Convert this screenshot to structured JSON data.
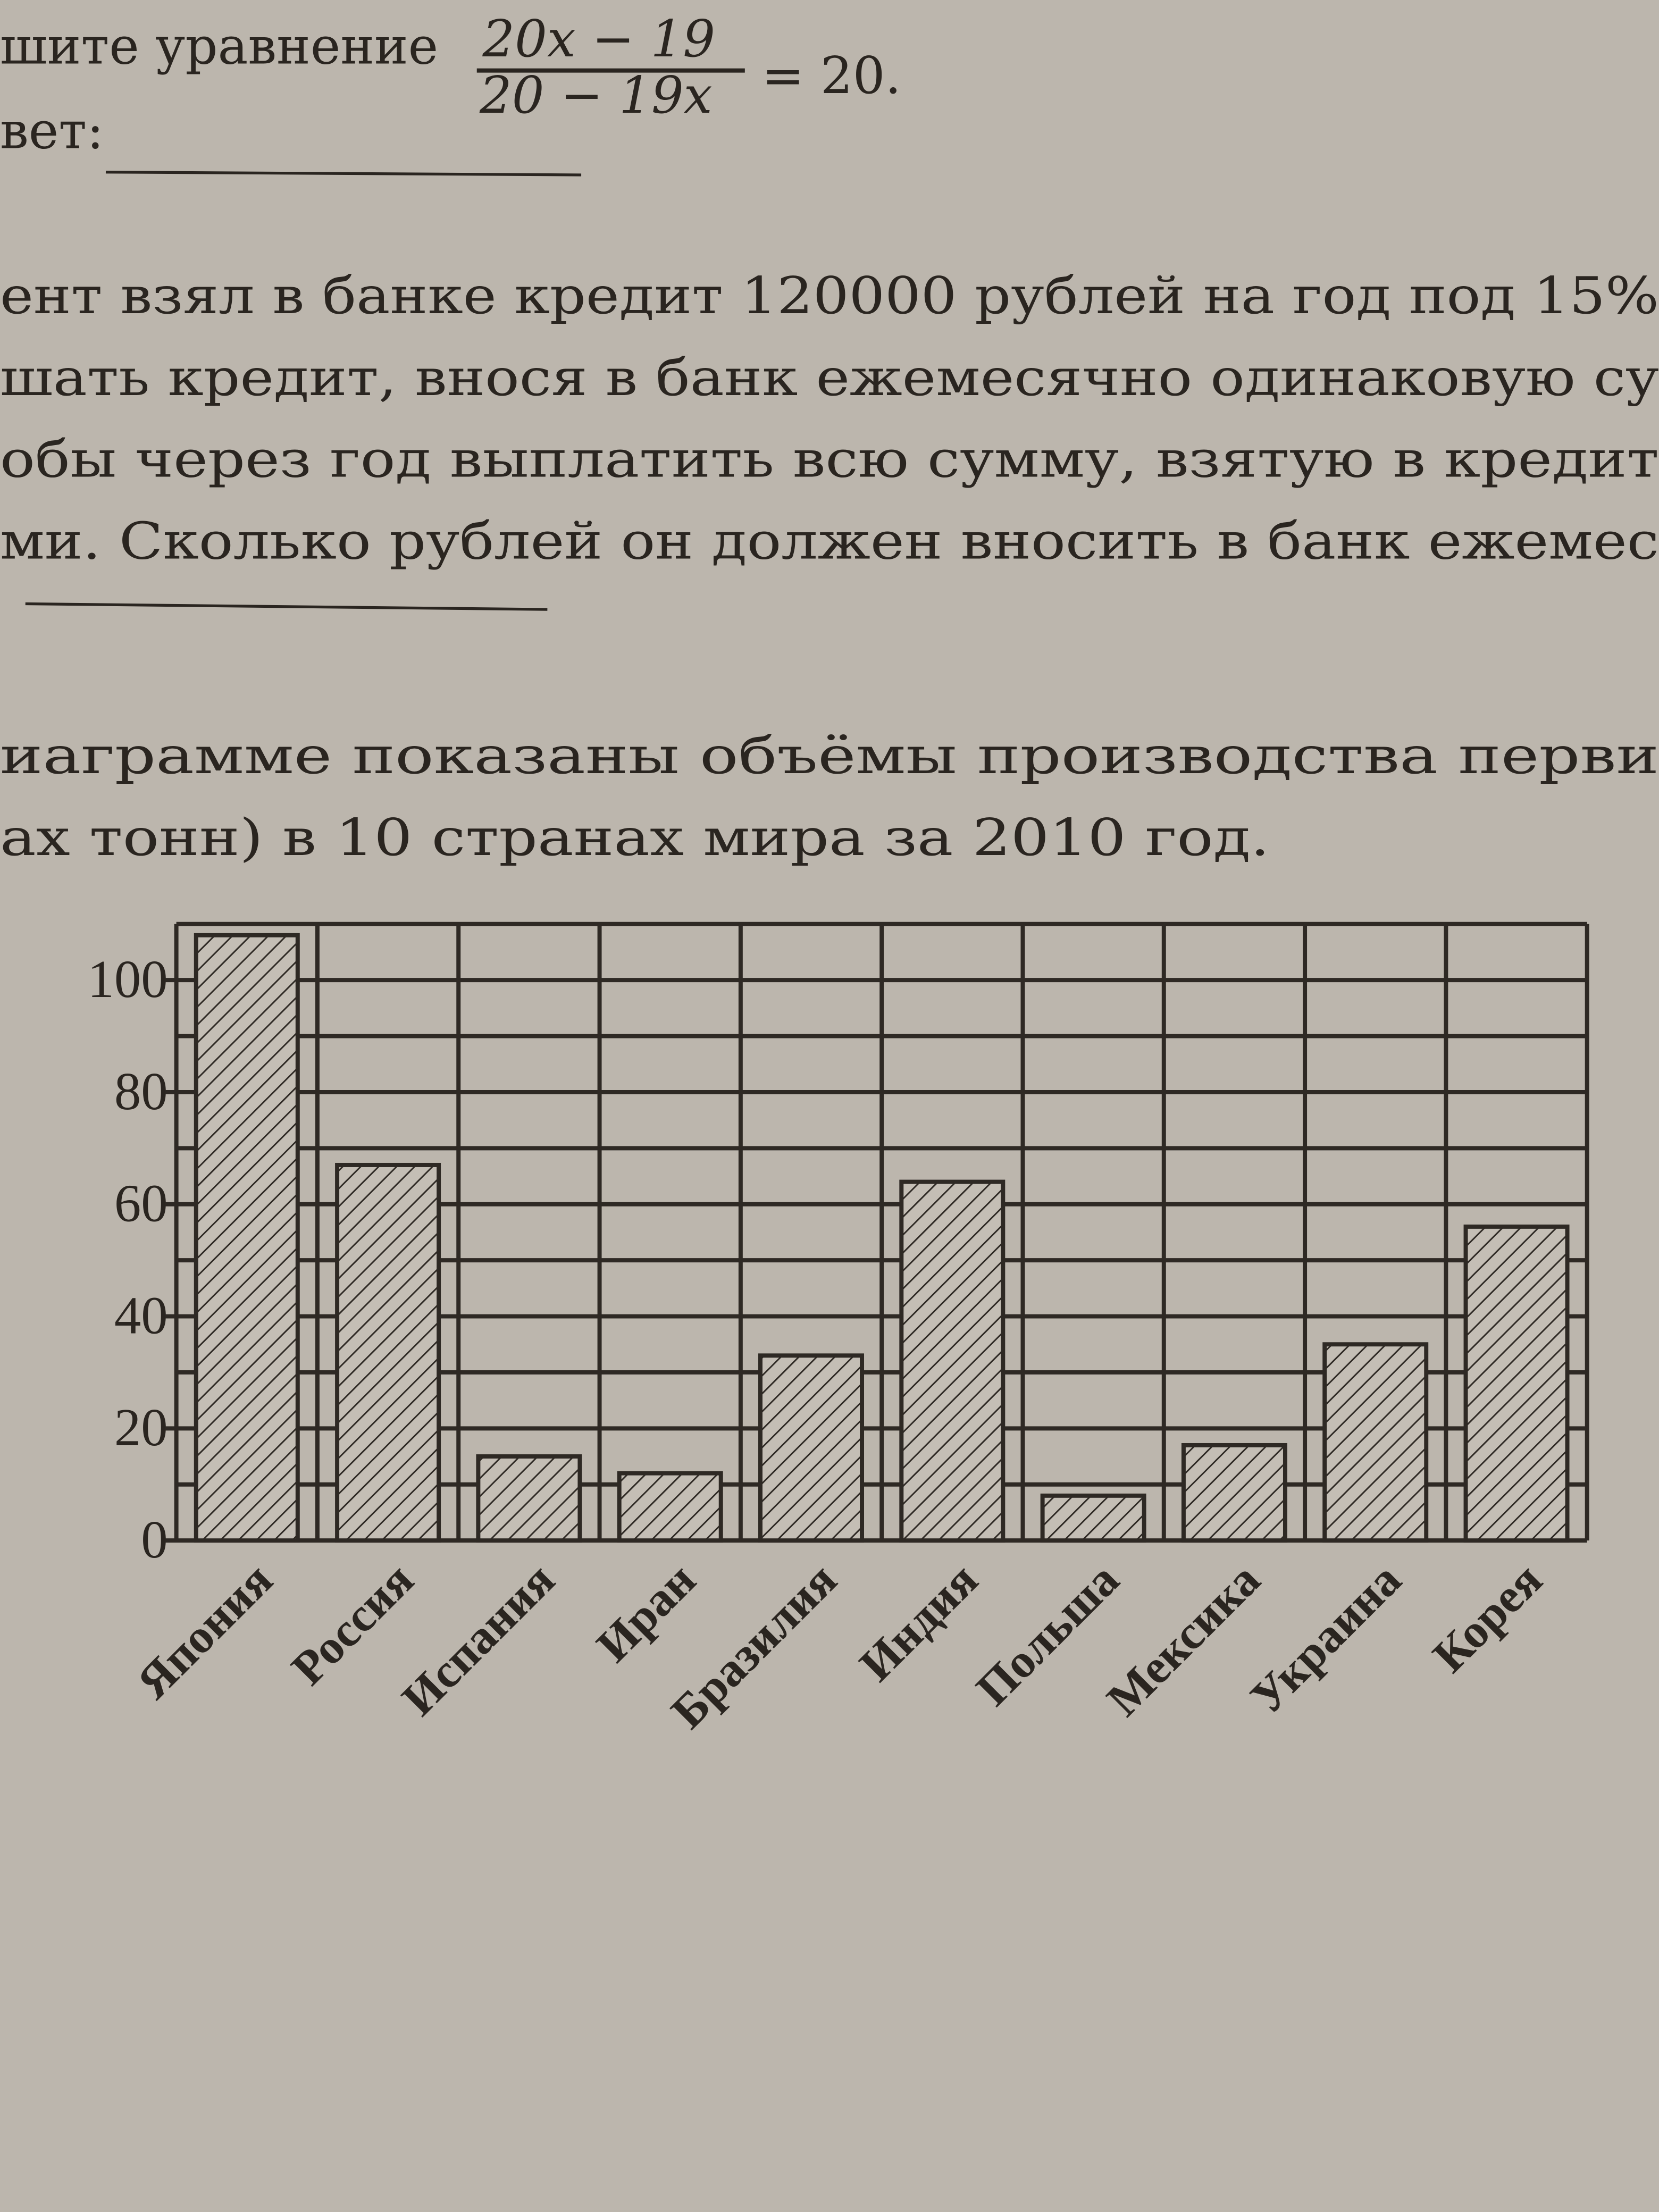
{
  "text": {
    "eq_label": "шите уравнение",
    "numerator": "20x − 19",
    "denominator": "20 − 19x",
    "equals": "= 20.",
    "answer": "вет:",
    "problem2": [
      "ент взял в банке кредит 120000 рублей на год под 15%",
      "шать кредит, внося в банк ежемесячно одинаковую су",
      "обы через год выплатить всю сумму, взятую в кредит",
      "ми. Сколько рублей он должен вносить в банк ежемес"
    ],
    "problem3": [
      "иаграмме показаны объёмы производства перви",
      "ах тонн) в 10 странах мира за 2010 год."
    ]
  },
  "chart_data": {
    "type": "bar",
    "categories": [
      "Япония",
      "Россия",
      "Испания",
      "Иран",
      "Бразилия",
      "Индия",
      "Польша",
      "Мексика",
      "Украина",
      "Корея"
    ],
    "values": [
      108,
      67,
      15,
      12,
      33,
      64,
      8,
      17,
      35,
      56
    ],
    "color": "#2e2924",
    "ylim": [
      0,
      110
    ],
    "yticks": [
      0,
      20,
      40,
      60,
      80,
      100
    ],
    "minor_yticks": [
      10,
      30,
      50,
      70,
      90,
      110
    ],
    "grid": true,
    "hatched": true
  }
}
